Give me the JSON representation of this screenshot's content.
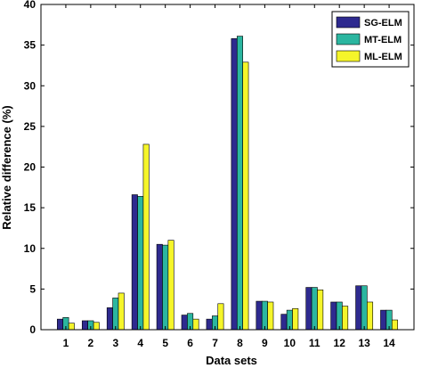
{
  "chart_data": {
    "type": "bar",
    "xlabel": "Data sets",
    "ylabel": "Relative difference (%)",
    "ylim": [
      0,
      40
    ],
    "yticks": [
      0,
      5,
      10,
      15,
      20,
      25,
      30,
      35,
      40
    ],
    "categories": [
      "1",
      "2",
      "3",
      "4",
      "5",
      "6",
      "7",
      "8",
      "9",
      "10",
      "11",
      "12",
      "13",
      "14"
    ],
    "series": [
      {
        "name": "SG-ELM",
        "color": "#2e2a8f",
        "values": [
          1.3,
          1.1,
          2.7,
          16.6,
          10.5,
          1.8,
          1.3,
          35.8,
          3.5,
          1.9,
          5.2,
          3.4,
          5.4,
          2.4
        ]
      },
      {
        "name": "MT-ELM",
        "color": "#2bb6a0",
        "values": [
          1.5,
          1.1,
          3.9,
          16.4,
          10.4,
          2.0,
          1.7,
          36.1,
          3.5,
          2.4,
          5.2,
          3.4,
          5.4,
          2.4
        ]
      },
      {
        "name": "ML-ELM",
        "color": "#f5f52a",
        "values": [
          0.8,
          0.9,
          4.5,
          22.8,
          11.0,
          1.3,
          3.2,
          32.9,
          3.4,
          2.6,
          4.9,
          2.9,
          3.4,
          1.2
        ]
      }
    ],
    "legend_position": "top-right",
    "grid": false
  }
}
